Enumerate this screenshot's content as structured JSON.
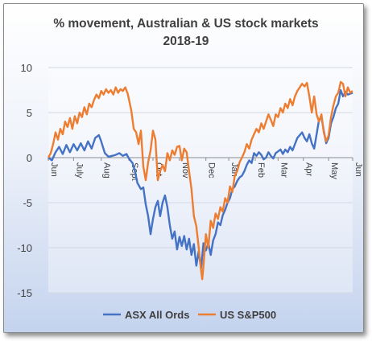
{
  "chart_data": {
    "type": "line",
    "title": "%  movement, Australian & US stock markets",
    "subtitle": "2018-19",
    "xlabel": "",
    "ylabel": "",
    "ylim": [
      -15,
      10
    ],
    "yticks": [
      10,
      5,
      0,
      -5,
      -10,
      -15
    ],
    "xlim": [
      0,
      253
    ],
    "x_tick_labels": [
      {
        "label": "Jun",
        "x": 0
      },
      {
        "label": "July",
        "x": 21
      },
      {
        "label": "Aug",
        "x": 44
      },
      {
        "label": "Sept",
        "x": 67
      },
      {
        "label": "Oct",
        "x": 87
      },
      {
        "label": "Nov",
        "x": 109
      },
      {
        "label": "Dec",
        "x": 131
      },
      {
        "label": "Jan",
        "x": 150
      },
      {
        "label": "Feb",
        "x": 172
      },
      {
        "label": "Mar",
        "x": 191
      },
      {
        "label": "Apr",
        "x": 212
      },
      {
        "label": "May",
        "x": 233
      },
      {
        "label": "Jun",
        "x": 253
      }
    ],
    "grid": true,
    "legend_position": "bottom",
    "series": [
      {
        "name": "ASX All Ords",
        "color": "#4472c4",
        "points": [
          [
            0,
            0
          ],
          [
            3,
            -0.3
          ],
          [
            6,
            0.6
          ],
          [
            9,
            1.2
          ],
          [
            12,
            0.4
          ],
          [
            15,
            1.4
          ],
          [
            18,
            0.6
          ],
          [
            21,
            1.5
          ],
          [
            24,
            0.8
          ],
          [
            27,
            1.6
          ],
          [
            30,
            0.8
          ],
          [
            33,
            1.8
          ],
          [
            36,
            1.0
          ],
          [
            39,
            2.2
          ],
          [
            42,
            2.5
          ],
          [
            44,
            1.8
          ],
          [
            47,
            0.5
          ],
          [
            50,
            0.1
          ],
          [
            53,
            0.2
          ],
          [
            56,
            0.3
          ],
          [
            59,
            0.5
          ],
          [
            62,
            0.2
          ],
          [
            65,
            0.4
          ],
          [
            67,
            -0.1
          ],
          [
            70,
            -0.6
          ],
          [
            72,
            -1.5
          ],
          [
            74,
            -2.8
          ],
          [
            77,
            -3.5
          ],
          [
            79,
            -3.3
          ],
          [
            81,
            -5.2
          ],
          [
            83,
            -6.5
          ],
          [
            85,
            -8.5
          ],
          [
            87,
            -6.8
          ],
          [
            89,
            -5.5
          ],
          [
            91,
            -4.8
          ],
          [
            93,
            -6.5
          ],
          [
            95,
            -5.0
          ],
          [
            97,
            -4.2
          ],
          [
            99,
            -5.5
          ],
          [
            101,
            -7.5
          ],
          [
            103,
            -9.0
          ],
          [
            105,
            -8.2
          ],
          [
            107,
            -10.2
          ],
          [
            109,
            -8.8
          ],
          [
            111,
            -9.8
          ],
          [
            113,
            -8.7
          ],
          [
            115,
            -10.2
          ],
          [
            117,
            -9.0
          ],
          [
            119,
            -10.8
          ],
          [
            121,
            -9.6
          ],
          [
            123,
            -12.0
          ],
          [
            125,
            -10.4
          ],
          [
            127,
            -12.3
          ],
          [
            129,
            -9.5
          ],
          [
            131,
            -10.3
          ],
          [
            133,
            -9.5
          ],
          [
            135,
            -10.8
          ],
          [
            137,
            -9.2
          ],
          [
            139,
            -8.5
          ],
          [
            141,
            -7.2
          ],
          [
            143,
            -7.5
          ],
          [
            145,
            -6.4
          ],
          [
            147,
            -5.8
          ],
          [
            149,
            -5.0
          ],
          [
            151,
            -4.5
          ],
          [
            153,
            -3.5
          ],
          [
            155,
            -3.2
          ],
          [
            157,
            -2.6
          ],
          [
            159,
            -2.2
          ],
          [
            161,
            -2.0
          ],
          [
            163,
            -1.5
          ],
          [
            165,
            -0.8
          ],
          [
            167,
            -0.3
          ],
          [
            169,
            -0.6
          ],
          [
            171,
            0.5
          ],
          [
            173,
            0.2
          ],
          [
            175,
            0.6
          ],
          [
            177,
            0.3
          ],
          [
            179,
            -0.2
          ],
          [
            181,
            0.0
          ],
          [
            183,
            0.6
          ],
          [
            185,
            0.2
          ],
          [
            187,
            -0.1
          ],
          [
            189,
            0.5
          ],
          [
            191,
            0.7
          ],
          [
            193,
            0.9
          ],
          [
            195,
            0.4
          ],
          [
            197,
            0.9
          ],
          [
            199,
            0.6
          ],
          [
            201,
            1.2
          ],
          [
            203,
            0.8
          ],
          [
            205,
            1.5
          ],
          [
            207,
            2.2
          ],
          [
            209,
            2.5
          ],
          [
            211,
            2.8
          ],
          [
            213,
            2.2
          ],
          [
            215,
            1.8
          ],
          [
            217,
            2.6
          ],
          [
            219,
            1.6
          ],
          [
            221,
            1.0
          ],
          [
            223,
            2.6
          ],
          [
            225,
            4.2
          ],
          [
            227,
            4.5
          ],
          [
            229,
            3.0
          ],
          [
            231,
            1.6
          ],
          [
            233,
            2.2
          ],
          [
            235,
            3.8
          ],
          [
            237,
            4.5
          ],
          [
            239,
            5.5
          ],
          [
            241,
            6.0
          ],
          [
            243,
            7.5
          ],
          [
            245,
            6.8
          ],
          [
            247,
            7.3
          ],
          [
            249,
            7.0
          ],
          [
            251,
            7.1
          ],
          [
            253,
            7.2
          ]
        ]
      },
      {
        "name": "US S&P500",
        "color": "#ed7d31",
        "points": [
          [
            0,
            0
          ],
          [
            2,
            0.5
          ],
          [
            4,
            1.5
          ],
          [
            6,
            2.8
          ],
          [
            8,
            2.0
          ],
          [
            10,
            3.2
          ],
          [
            12,
            2.6
          ],
          [
            14,
            4.0
          ],
          [
            16,
            3.4
          ],
          [
            18,
            4.4
          ],
          [
            20,
            3.2
          ],
          [
            22,
            4.6
          ],
          [
            24,
            3.8
          ],
          [
            26,
            5.0
          ],
          [
            28,
            4.5
          ],
          [
            30,
            5.6
          ],
          [
            32,
            4.8
          ],
          [
            34,
            6.0
          ],
          [
            36,
            5.6
          ],
          [
            38,
            6.4
          ],
          [
            40,
            7.0
          ],
          [
            42,
            6.6
          ],
          [
            44,
            7.4
          ],
          [
            46,
            7.0
          ],
          [
            48,
            7.6
          ],
          [
            50,
            7.2
          ],
          [
            52,
            7.5
          ],
          [
            54,
            7.0
          ],
          [
            56,
            7.8
          ],
          [
            58,
            7.2
          ],
          [
            60,
            7.6
          ],
          [
            62,
            7.4
          ],
          [
            64,
            7.8
          ],
          [
            66,
            7.1
          ],
          [
            67,
            6.5
          ],
          [
            69,
            5.2
          ],
          [
            71,
            3.2
          ],
          [
            73,
            2.8
          ],
          [
            75,
            1.5
          ],
          [
            77,
            3.0
          ],
          [
            79,
            -1.0
          ],
          [
            81,
            -2.5
          ],
          [
            83,
            -0.5
          ],
          [
            85,
            0.8
          ],
          [
            87,
            3.0
          ],
          [
            89,
            2.0
          ],
          [
            91,
            -2.5
          ],
          [
            93,
            -1.5
          ],
          [
            95,
            -0.8
          ],
          [
            97,
            -1.5
          ],
          [
            99,
            0.5
          ],
          [
            101,
            -0.3
          ],
          [
            103,
            0.8
          ],
          [
            105,
            0.3
          ],
          [
            107,
            1.2
          ],
          [
            109,
            1.3
          ],
          [
            111,
            -0.3
          ],
          [
            113,
            1.0
          ],
          [
            115,
            0.6
          ],
          [
            117,
            -1.5
          ],
          [
            119,
            -3.5
          ],
          [
            121,
            -6.5
          ],
          [
            123,
            -7.6
          ],
          [
            125,
            -10.0
          ],
          [
            127,
            -12.5
          ],
          [
            128,
            -13.5
          ],
          [
            129,
            -12.0
          ],
          [
            131,
            -8.5
          ],
          [
            133,
            -10.0
          ],
          [
            135,
            -7.0
          ],
          [
            137,
            -7.8
          ],
          [
            139,
            -6.2
          ],
          [
            141,
            -6.8
          ],
          [
            143,
            -5.5
          ],
          [
            145,
            -6.0
          ],
          [
            147,
            -4.5
          ],
          [
            149,
            -5.0
          ],
          [
            151,
            -3.2
          ],
          [
            153,
            -3.8
          ],
          [
            155,
            -2.0
          ],
          [
            157,
            -1.5
          ],
          [
            159,
            -0.5
          ],
          [
            161,
            0.0
          ],
          [
            163,
            0.6
          ],
          [
            165,
            1.5
          ],
          [
            167,
            1.0
          ],
          [
            169,
            2.0
          ],
          [
            171,
            2.6
          ],
          [
            173,
            3.2
          ],
          [
            175,
            2.8
          ],
          [
            177,
            3.8
          ],
          [
            179,
            3.2
          ],
          [
            181,
            4.0
          ],
          [
            183,
            4.8
          ],
          [
            185,
            4.2
          ],
          [
            187,
            3.5
          ],
          [
            189,
            4.8
          ],
          [
            191,
            4.5
          ],
          [
            193,
            5.5
          ],
          [
            195,
            5.0
          ],
          [
            197,
            6.0
          ],
          [
            199,
            5.5
          ],
          [
            201,
            6.5
          ],
          [
            203,
            5.8
          ],
          [
            205,
            6.8
          ],
          [
            207,
            7.4
          ],
          [
            209,
            7.8
          ],
          [
            211,
            8.2
          ],
          [
            213,
            7.9
          ],
          [
            215,
            8.3
          ],
          [
            217,
            6.8
          ],
          [
            219,
            5.0
          ],
          [
            221,
            6.8
          ],
          [
            223,
            4.8
          ],
          [
            225,
            4.0
          ],
          [
            227,
            4.8
          ],
          [
            229,
            2.8
          ],
          [
            231,
            1.8
          ],
          [
            233,
            2.5
          ],
          [
            235,
            4.5
          ],
          [
            237,
            5.8
          ],
          [
            239,
            6.8
          ],
          [
            241,
            7.2
          ],
          [
            243,
            8.4
          ],
          [
            245,
            8.2
          ],
          [
            247,
            6.8
          ],
          [
            249,
            7.8
          ],
          [
            251,
            7.2
          ],
          [
            253,
            7.4
          ]
        ]
      }
    ]
  }
}
